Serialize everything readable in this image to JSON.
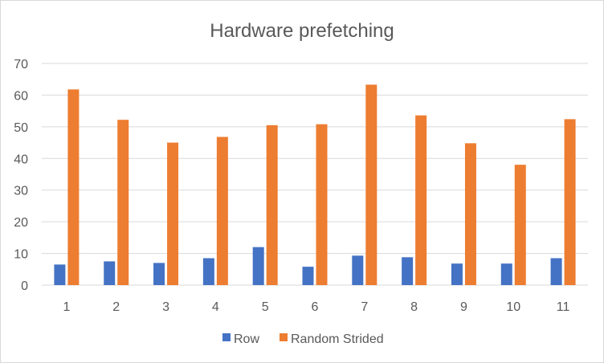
{
  "chart_data": {
    "type": "bar",
    "title": "Hardware prefetching",
    "xlabel": "",
    "ylabel": "",
    "categories": [
      "1",
      "2",
      "3",
      "4",
      "5",
      "6",
      "7",
      "8",
      "9",
      "10",
      "11"
    ],
    "series": [
      {
        "name": "Row",
        "color": "#4472c4",
        "values": [
          6.5,
          7.5,
          7.0,
          8.5,
          12.0,
          5.8,
          9.3,
          8.8,
          6.8,
          6.8,
          8.5
        ]
      },
      {
        "name": "Random Strided",
        "color": "#ed7d31",
        "values": [
          61.8,
          52.2,
          45.0,
          46.8,
          50.5,
          50.8,
          63.3,
          53.6,
          44.8,
          38.0,
          52.4
        ]
      }
    ],
    "ylim": [
      0,
      70
    ],
    "yticks": [
      "0",
      "10",
      "20",
      "30",
      "40",
      "50",
      "60",
      "70"
    ],
    "grid": true,
    "gridline_color": "#d9d9d9",
    "legend_position": "bottom"
  }
}
